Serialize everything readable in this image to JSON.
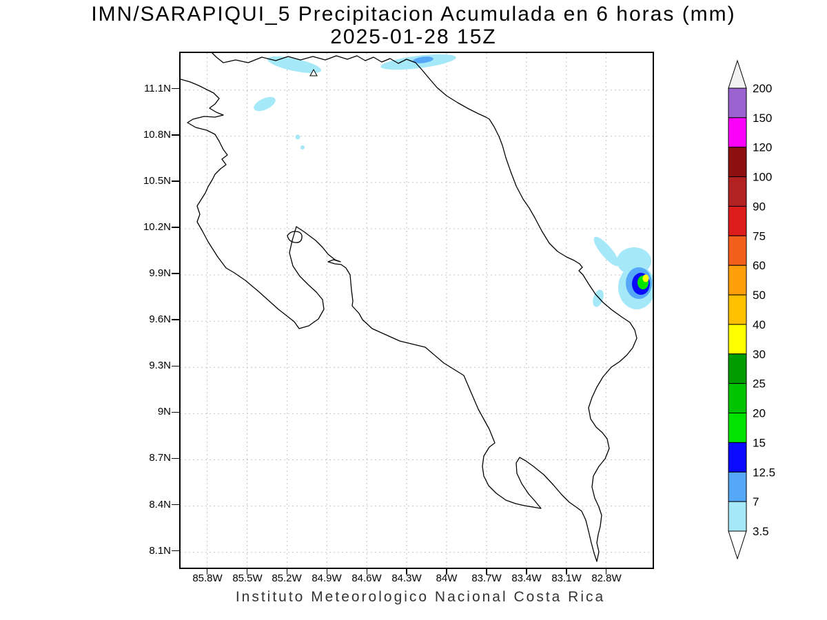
{
  "header": {
    "title": "IMN/SARAPIQUI_5 Precipitacion Acumulada en 6 horas (mm)",
    "datetime": "2025-01-28 15Z"
  },
  "footer": {
    "credit": "Instituto Meteorologico Nacional Costa Rica"
  },
  "axes": {
    "lat_ticks": [
      {
        "label": "11.1N",
        "value": 11.1
      },
      {
        "label": "10.8N",
        "value": 10.8
      },
      {
        "label": "10.5N",
        "value": 10.5
      },
      {
        "label": "10.2N",
        "value": 10.2
      },
      {
        "label": "9.9N",
        "value": 9.9
      },
      {
        "label": "9.6N",
        "value": 9.6
      },
      {
        "label": "9.3N",
        "value": 9.3
      },
      {
        "label": "9N",
        "value": 9.0
      },
      {
        "label": "8.7N",
        "value": 8.7
      },
      {
        "label": "8.4N",
        "value": 8.4
      },
      {
        "label": "8.1N",
        "value": 8.1
      }
    ],
    "lon_ticks": [
      {
        "label": "85.8W",
        "value": 85.8
      },
      {
        "label": "85.5W",
        "value": 85.5
      },
      {
        "label": "85.2W",
        "value": 85.2
      },
      {
        "label": "84.9W",
        "value": 84.9
      },
      {
        "label": "84.6W",
        "value": 84.6
      },
      {
        "label": "84.3W",
        "value": 84.3
      },
      {
        "label": "84W",
        "value": 84.0
      },
      {
        "label": "83.7W",
        "value": 83.7
      },
      {
        "label": "83.4W",
        "value": 83.4
      },
      {
        "label": "83.1W",
        "value": 83.1
      },
      {
        "label": "82.8W",
        "value": 82.8
      }
    ]
  },
  "colorbar": {
    "labels": [
      "200",
      "150",
      "120",
      "100",
      "90",
      "75",
      "60",
      "50",
      "40",
      "30",
      "25",
      "20",
      "15",
      "12.5",
      "7",
      "3.5"
    ],
    "below_min_color": "#ffffff"
  },
  "chart_data": {
    "type": "heatmap",
    "title": "IMN/SARAPIQUI_5 Precipitacion Acumulada en 6 horas (mm)",
    "valid_time": "2025-01-28 15Z",
    "units": "mm",
    "region": "Costa Rica",
    "lat_range": [
      8.0,
      11.35
    ],
    "lon_range_w": [
      86.0,
      82.45
    ],
    "grid": "dashed",
    "legend_position": "right",
    "levels_mm": [
      3.5,
      7,
      12.5,
      15,
      20,
      25,
      30,
      40,
      50,
      60,
      75,
      90,
      100,
      120,
      150,
      200
    ],
    "level_colors": [
      "#a5e8f7",
      "#55a7f8",
      "#0a0aff",
      "#00e400",
      "#00c400",
      "#009c00",
      "#ffff00",
      "#ffc000",
      "#ffa00a",
      "#f3601c",
      "#dd1c1c",
      "#b22222",
      "#8f1010",
      "#fb00fb",
      "#9a63cf",
      "#f2f2f2"
    ],
    "features": [
      {
        "area": "northern border band, NW segment",
        "center_lat": 11.26,
        "center_lon_w": 85.15,
        "max_mm": 5
      },
      {
        "area": "northern border streak, N of Sarapiqui plains",
        "center_lat": 11.29,
        "center_lon_w": 84.2,
        "max_mm": 10
      },
      {
        "area": "NW Guanacaste small patch",
        "center_lat": 11.0,
        "center_lon_w": 85.37,
        "max_mm": 5
      },
      {
        "area": "tiny spots near Nicoya gulf head",
        "center_lat": 10.77,
        "center_lon_w": 85.1,
        "max_mm": 4
      },
      {
        "area": "Caribbean offshore streak NE of Limon",
        "center_lat": 10.05,
        "center_lon_w": 82.8,
        "max_mm": 5
      },
      {
        "area": "Caribbean coastal cell near CR-Panama border",
        "center_lat": 9.86,
        "center_lon_w": 82.56,
        "max_mm": 40
      },
      {
        "area": "small coastal spot S of Limon",
        "center_lat": 9.74,
        "center_lon_w": 82.85,
        "max_mm": 5
      }
    ]
  }
}
